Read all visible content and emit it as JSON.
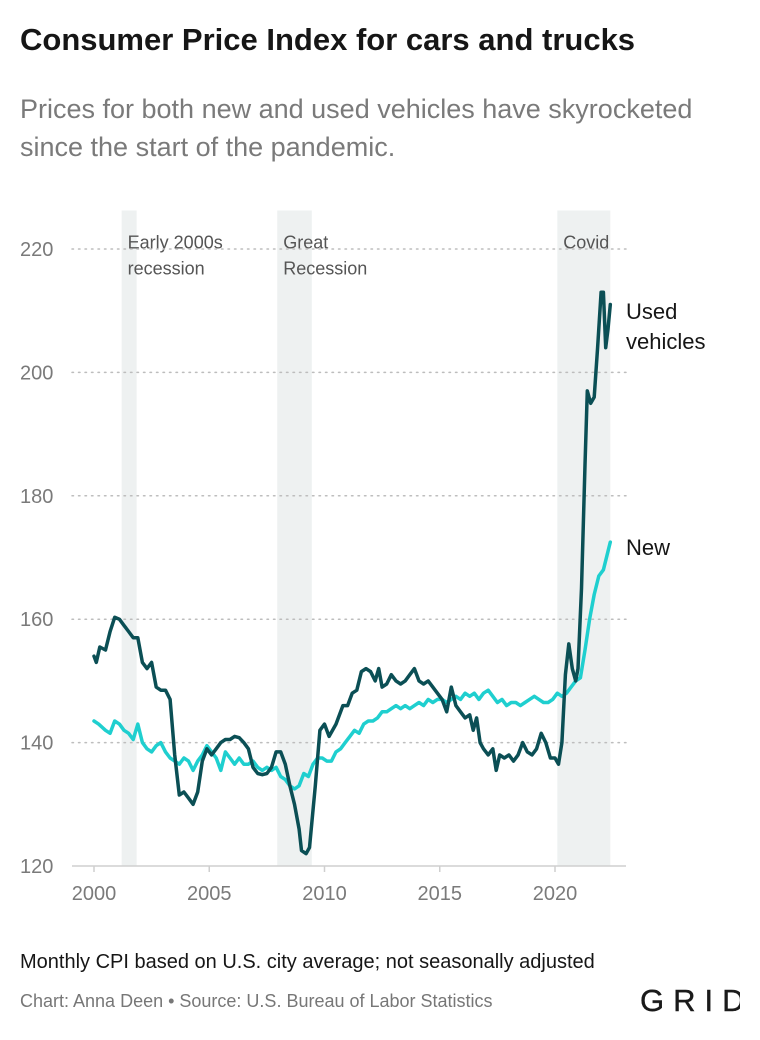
{
  "header": {
    "title": "Consumer Price Index for cars and trucks",
    "subtitle": "Prices for both new and used vehicles have skyrocketed since the start of the pandemic."
  },
  "footer": {
    "note": "Monthly CPI based on U.S. city average; not seasonally adjusted",
    "credit": "Chart: Anna Deen • Source: U.S. Bureau of Labor Statistics",
    "logo_text": "GRID"
  },
  "colors": {
    "used": "#0b4f55",
    "new": "#1fcfcf",
    "shade": "#eef1f1",
    "grid": "#bdbdbd"
  },
  "chart_data": {
    "type": "line",
    "title": "Consumer Price Index for cars and trucks",
    "xlabel": "",
    "ylabel": "",
    "xlim": [
      2000,
      2022.9
    ],
    "ylim": [
      120,
      223
    ],
    "x_ticks": [
      2000,
      2005,
      2010,
      2015,
      2020
    ],
    "y_ticks": [
      120,
      140,
      160,
      180,
      200,
      220
    ],
    "grid": "horizontal dotted",
    "shaded_periods": [
      {
        "label_lines": [
          "Early 2000s",
          "recession"
        ],
        "start": 2001.2,
        "end": 2001.85
      },
      {
        "label_lines": [
          "Great",
          "Recession"
        ],
        "start": 2007.95,
        "end": 2009.45
      },
      {
        "label_lines": [
          "Covid"
        ],
        "start": 2020.1,
        "end": 2022.4
      }
    ],
    "series": [
      {
        "name": "Used vehicles",
        "label_lines": [
          "Used",
          "vehicles"
        ],
        "color": "#0b4f55",
        "points": [
          [
            2000.0,
            154
          ],
          [
            2000.1,
            153
          ],
          [
            2000.25,
            155.5
          ],
          [
            2000.5,
            155
          ],
          [
            2000.7,
            158
          ],
          [
            2000.9,
            160.3
          ],
          [
            2001.1,
            160
          ],
          [
            2001.3,
            159
          ],
          [
            2001.5,
            158
          ],
          [
            2001.7,
            157
          ],
          [
            2001.9,
            157
          ],
          [
            2002.1,
            153
          ],
          [
            2002.3,
            152
          ],
          [
            2002.5,
            153
          ],
          [
            2002.7,
            149
          ],
          [
            2002.9,
            148.5
          ],
          [
            2003.1,
            148.5
          ],
          [
            2003.3,
            147
          ],
          [
            2003.5,
            138
          ],
          [
            2003.7,
            131.5
          ],
          [
            2003.9,
            132
          ],
          [
            2004.1,
            131
          ],
          [
            2004.3,
            130
          ],
          [
            2004.5,
            132
          ],
          [
            2004.7,
            137
          ],
          [
            2004.9,
            139
          ],
          [
            2005.1,
            138
          ],
          [
            2005.3,
            139
          ],
          [
            2005.5,
            140
          ],
          [
            2005.7,
            140.5
          ],
          [
            2005.9,
            140.5
          ],
          [
            2006.1,
            141
          ],
          [
            2006.3,
            140.8
          ],
          [
            2006.5,
            140
          ],
          [
            2006.7,
            139
          ],
          [
            2006.9,
            136
          ],
          [
            2007.1,
            135
          ],
          [
            2007.3,
            134.8
          ],
          [
            2007.5,
            135
          ],
          [
            2007.7,
            136
          ],
          [
            2007.9,
            138.5
          ],
          [
            2008.1,
            138.5
          ],
          [
            2008.3,
            136.5
          ],
          [
            2008.5,
            133
          ],
          [
            2008.7,
            130
          ],
          [
            2008.9,
            126
          ],
          [
            2009.0,
            122.5
          ],
          [
            2009.2,
            122
          ],
          [
            2009.35,
            123
          ],
          [
            2009.6,
            133
          ],
          [
            2009.8,
            142
          ],
          [
            2010.0,
            143
          ],
          [
            2010.2,
            141
          ],
          [
            2010.5,
            143
          ],
          [
            2010.8,
            146
          ],
          [
            2011.0,
            146
          ],
          [
            2011.2,
            148
          ],
          [
            2011.4,
            148.5
          ],
          [
            2011.6,
            151.5
          ],
          [
            2011.8,
            152
          ],
          [
            2012.0,
            151.5
          ],
          [
            2012.2,
            150
          ],
          [
            2012.35,
            152
          ],
          [
            2012.5,
            149
          ],
          [
            2012.7,
            149.5
          ],
          [
            2012.9,
            151
          ],
          [
            2013.1,
            150
          ],
          [
            2013.3,
            149.5
          ],
          [
            2013.5,
            150
          ],
          [
            2013.7,
            151
          ],
          [
            2013.9,
            152
          ],
          [
            2014.1,
            150
          ],
          [
            2014.3,
            149.5
          ],
          [
            2014.5,
            150
          ],
          [
            2014.7,
            149
          ],
          [
            2014.9,
            148
          ],
          [
            2015.1,
            147
          ],
          [
            2015.3,
            145
          ],
          [
            2015.5,
            149
          ],
          [
            2015.7,
            146
          ],
          [
            2015.9,
            145
          ],
          [
            2016.1,
            144
          ],
          [
            2016.3,
            144.5
          ],
          [
            2016.45,
            142
          ],
          [
            2016.6,
            144
          ],
          [
            2016.75,
            140
          ],
          [
            2016.9,
            139
          ],
          [
            2017.1,
            138
          ],
          [
            2017.3,
            139
          ],
          [
            2017.45,
            135.5
          ],
          [
            2017.6,
            138
          ],
          [
            2017.8,
            137.5
          ],
          [
            2018.0,
            138
          ],
          [
            2018.2,
            137
          ],
          [
            2018.4,
            138
          ],
          [
            2018.6,
            140
          ],
          [
            2018.8,
            138.5
          ],
          [
            2019.0,
            138
          ],
          [
            2019.2,
            139
          ],
          [
            2019.4,
            141.5
          ],
          [
            2019.6,
            140
          ],
          [
            2019.8,
            137.5
          ],
          [
            2020.0,
            137.5
          ],
          [
            2020.15,
            136.5
          ],
          [
            2020.3,
            140
          ],
          [
            2020.45,
            151
          ],
          [
            2020.6,
            156
          ],
          [
            2020.75,
            152
          ],
          [
            2020.9,
            150
          ],
          [
            2021.0,
            152
          ],
          [
            2021.15,
            165
          ],
          [
            2021.3,
            185
          ],
          [
            2021.4,
            197
          ],
          [
            2021.55,
            195
          ],
          [
            2021.7,
            196
          ],
          [
            2021.85,
            204
          ],
          [
            2022.0,
            213
          ],
          [
            2022.1,
            213
          ],
          [
            2022.2,
            204
          ],
          [
            2022.3,
            207
          ],
          [
            2022.4,
            211
          ]
        ]
      },
      {
        "name": "New",
        "label_lines": [
          "New"
        ],
        "color": "#1fcfcf",
        "points": [
          [
            2000.0,
            143.5
          ],
          [
            2000.2,
            143
          ],
          [
            2000.5,
            142
          ],
          [
            2000.7,
            141.5
          ],
          [
            2000.9,
            143.5
          ],
          [
            2001.1,
            143
          ],
          [
            2001.3,
            142
          ],
          [
            2001.5,
            141.5
          ],
          [
            2001.7,
            140.5
          ],
          [
            2001.9,
            143
          ],
          [
            2002.1,
            140
          ],
          [
            2002.3,
            139
          ],
          [
            2002.5,
            138.5
          ],
          [
            2002.7,
            139.5
          ],
          [
            2002.9,
            140
          ],
          [
            2003.1,
            138.5
          ],
          [
            2003.3,
            137.5
          ],
          [
            2003.5,
            137
          ],
          [
            2003.7,
            136.5
          ],
          [
            2003.9,
            137.5
          ],
          [
            2004.1,
            137
          ],
          [
            2004.3,
            135.5
          ],
          [
            2004.5,
            137
          ],
          [
            2004.7,
            138
          ],
          [
            2004.9,
            139.5
          ],
          [
            2005.1,
            138.5
          ],
          [
            2005.3,
            137.5
          ],
          [
            2005.5,
            135.5
          ],
          [
            2005.7,
            138.5
          ],
          [
            2005.9,
            137.5
          ],
          [
            2006.1,
            136.5
          ],
          [
            2006.3,
            137.5
          ],
          [
            2006.5,
            136.5
          ],
          [
            2006.7,
            136.5
          ],
          [
            2006.9,
            137
          ],
          [
            2007.1,
            136
          ],
          [
            2007.3,
            135.5
          ],
          [
            2007.5,
            136
          ],
          [
            2007.7,
            135.5
          ],
          [
            2007.9,
            136
          ],
          [
            2008.1,
            134.5
          ],
          [
            2008.3,
            134
          ],
          [
            2008.5,
            133
          ],
          [
            2008.7,
            132.5
          ],
          [
            2008.9,
            133
          ],
          [
            2009.1,
            135
          ],
          [
            2009.3,
            134.5
          ],
          [
            2009.5,
            136.5
          ],
          [
            2009.7,
            137.5
          ],
          [
            2009.9,
            137.5
          ],
          [
            2010.1,
            137
          ],
          [
            2010.3,
            137
          ],
          [
            2010.5,
            138.5
          ],
          [
            2010.7,
            139
          ],
          [
            2010.9,
            140
          ],
          [
            2011.1,
            141
          ],
          [
            2011.3,
            142
          ],
          [
            2011.5,
            141.5
          ],
          [
            2011.7,
            143
          ],
          [
            2011.9,
            143.5
          ],
          [
            2012.1,
            143.5
          ],
          [
            2012.3,
            144
          ],
          [
            2012.5,
            145
          ],
          [
            2012.7,
            145
          ],
          [
            2012.9,
            145.5
          ],
          [
            2013.1,
            146
          ],
          [
            2013.3,
            145.5
          ],
          [
            2013.5,
            146
          ],
          [
            2013.7,
            145.5
          ],
          [
            2013.9,
            146
          ],
          [
            2014.1,
            146.5
          ],
          [
            2014.3,
            146
          ],
          [
            2014.5,
            147
          ],
          [
            2014.7,
            146.5
          ],
          [
            2014.9,
            147
          ],
          [
            2015.1,
            147
          ],
          [
            2015.3,
            146.5
          ],
          [
            2015.5,
            147
          ],
          [
            2015.7,
            147.5
          ],
          [
            2015.9,
            147
          ],
          [
            2016.1,
            148
          ],
          [
            2016.3,
            147.5
          ],
          [
            2016.5,
            148
          ],
          [
            2016.7,
            147
          ],
          [
            2016.9,
            148
          ],
          [
            2017.1,
            148.5
          ],
          [
            2017.3,
            147.5
          ],
          [
            2017.5,
            146.5
          ],
          [
            2017.7,
            147
          ],
          [
            2017.9,
            146
          ],
          [
            2018.1,
            146.5
          ],
          [
            2018.3,
            146.5
          ],
          [
            2018.5,
            146
          ],
          [
            2018.7,
            146.5
          ],
          [
            2018.9,
            147
          ],
          [
            2019.1,
            147.5
          ],
          [
            2019.3,
            147
          ],
          [
            2019.5,
            146.5
          ],
          [
            2019.7,
            146.5
          ],
          [
            2019.9,
            147
          ],
          [
            2020.1,
            148
          ],
          [
            2020.3,
            147.5
          ],
          [
            2020.5,
            148
          ],
          [
            2020.7,
            149
          ],
          [
            2020.9,
            150
          ],
          [
            2021.1,
            150.5
          ],
          [
            2021.3,
            155
          ],
          [
            2021.5,
            160
          ],
          [
            2021.7,
            164
          ],
          [
            2021.9,
            167
          ],
          [
            2022.1,
            168
          ],
          [
            2022.3,
            171
          ],
          [
            2022.4,
            172.5
          ]
        ]
      }
    ]
  }
}
